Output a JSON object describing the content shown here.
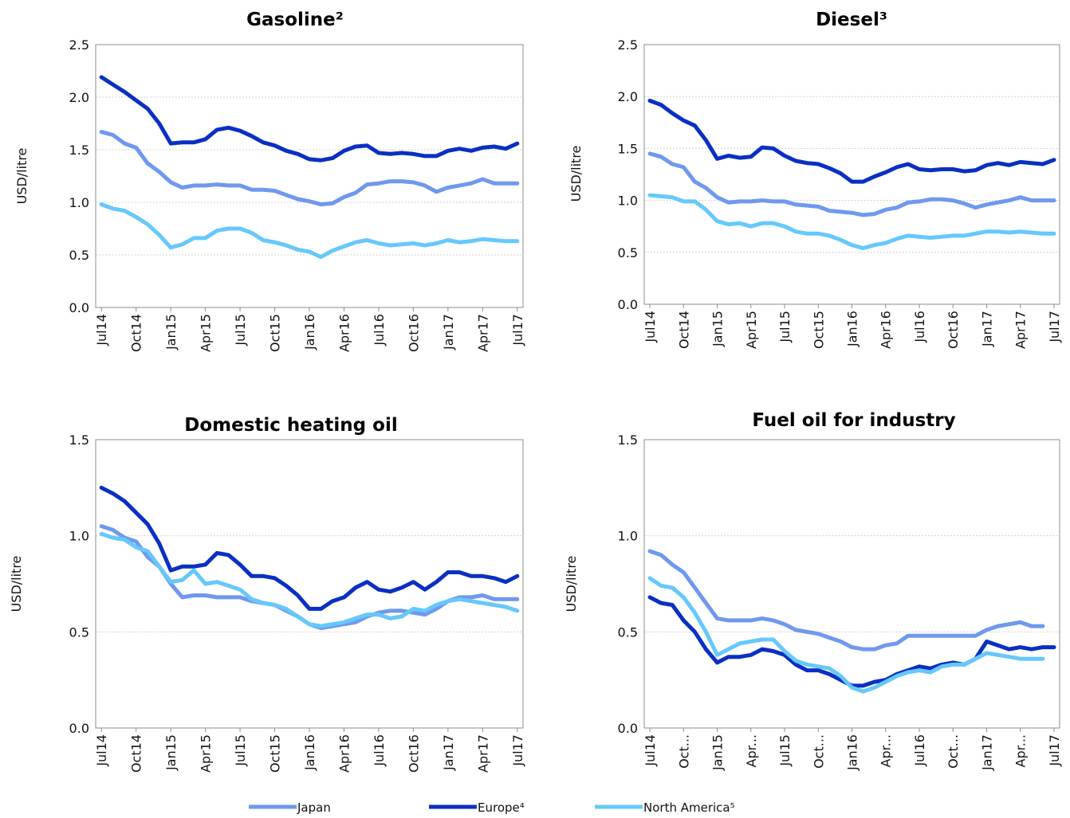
{
  "legend": [
    {
      "name": "Japan",
      "color": "#6f98ee"
    },
    {
      "name": "Europe⁴",
      "color": "#0a2fc2"
    },
    {
      "name": "North America⁵",
      "color": "#66c8fb"
    }
  ],
  "chart_data": [
    {
      "type": "line",
      "title": "Gasoline²",
      "ylabel": "USD/litre",
      "ylim": [
        0,
        2.5
      ],
      "yticks": [
        "0.0",
        "0.5",
        "1.0",
        "1.5",
        "2.0",
        "2.5"
      ],
      "xtick_labels": [
        "Jul14",
        "Oct14",
        "Jan15",
        "Apr15",
        "Jul15",
        "Oct15",
        "Jan16",
        "Apr16",
        "Jul16",
        "Oct16",
        "Jan17",
        "Apr17",
        "Jul17"
      ],
      "x": [
        "Jul14",
        "Aug14",
        "Sep14",
        "Oct14",
        "Nov14",
        "Dec14",
        "Jan15",
        "Feb15",
        "Mar15",
        "Apr15",
        "May15",
        "Jun15",
        "Jul15",
        "Aug15",
        "Sep15",
        "Oct15",
        "Nov15",
        "Dec15",
        "Jan16",
        "Feb16",
        "Mar16",
        "Apr16",
        "May16",
        "Jun16",
        "Jul16",
        "Aug16",
        "Sep16",
        "Oct16",
        "Nov16",
        "Dec16",
        "Jan17",
        "Feb17",
        "Mar17",
        "Apr17",
        "May17",
        "Jun17",
        "Jul17"
      ],
      "series": [
        {
          "name": "Japan",
          "values": [
            1.67,
            1.64,
            1.56,
            1.52,
            1.37,
            1.29,
            1.19,
            1.14,
            1.16,
            1.16,
            1.17,
            1.16,
            1.16,
            1.12,
            1.12,
            1.11,
            1.07,
            1.03,
            1.01,
            0.98,
            0.99,
            1.05,
            1.09,
            1.17,
            1.18,
            1.2,
            1.2,
            1.19,
            1.16,
            1.1,
            1.14,
            1.16,
            1.18,
            1.22,
            1.18,
            1.18,
            1.18
          ]
        },
        {
          "name": "Europe⁴",
          "values": [
            2.19,
            2.12,
            2.05,
            1.97,
            1.89,
            1.75,
            1.56,
            1.57,
            1.57,
            1.6,
            1.69,
            1.71,
            1.68,
            1.63,
            1.57,
            1.54,
            1.49,
            1.46,
            1.41,
            1.4,
            1.42,
            1.49,
            1.53,
            1.54,
            1.47,
            1.46,
            1.47,
            1.46,
            1.44,
            1.44,
            1.49,
            1.51,
            1.49,
            1.52,
            1.53,
            1.51,
            1.56
          ]
        },
        {
          "name": "North America⁵",
          "values": [
            0.98,
            0.94,
            0.92,
            0.86,
            0.79,
            0.69,
            0.57,
            0.6,
            0.66,
            0.66,
            0.73,
            0.75,
            0.75,
            0.71,
            0.64,
            0.62,
            0.59,
            0.55,
            0.53,
            0.48,
            0.54,
            0.58,
            0.62,
            0.64,
            0.61,
            0.59,
            0.6,
            0.61,
            0.59,
            0.61,
            0.64,
            0.62,
            0.63,
            0.65,
            0.64,
            0.63,
            0.63
          ]
        }
      ]
    },
    {
      "type": "line",
      "title": "Diesel³",
      "ylabel": "USD/litre",
      "ylim": [
        0,
        2.5
      ],
      "yticks": [
        "0.0",
        "0.5",
        "1.0",
        "1.5",
        "2.0",
        "2.5"
      ],
      "xtick_labels": [
        "Jul14",
        "Oct14",
        "Jan15",
        "Apr15",
        "Jul15",
        "Oct15",
        "Jan16",
        "Apr16",
        "Jul16",
        "Oct16",
        "Jan17",
        "Apr17",
        "Jul17"
      ],
      "x": [
        "Jul14",
        "Aug14",
        "Sep14",
        "Oct14",
        "Nov14",
        "Dec14",
        "Jan15",
        "Feb15",
        "Mar15",
        "Apr15",
        "May15",
        "Jun15",
        "Jul15",
        "Aug15",
        "Sep15",
        "Oct15",
        "Nov15",
        "Dec15",
        "Jan16",
        "Feb16",
        "Mar16",
        "Apr16",
        "May16",
        "Jun16",
        "Jul16",
        "Aug16",
        "Sep16",
        "Oct16",
        "Nov16",
        "Dec16",
        "Jan17",
        "Feb17",
        "Mar17",
        "Apr17",
        "May17",
        "Jun17",
        "Jul17"
      ],
      "series": [
        {
          "name": "Japan",
          "values": [
            1.45,
            1.42,
            1.35,
            1.32,
            1.18,
            1.12,
            1.03,
            0.98,
            0.99,
            0.99,
            1.0,
            0.99,
            0.99,
            0.96,
            0.95,
            0.94,
            0.9,
            0.89,
            0.88,
            0.86,
            0.87,
            0.91,
            0.93,
            0.98,
            0.99,
            1.01,
            1.01,
            1.0,
            0.97,
            0.93,
            0.96,
            0.98,
            1.0,
            1.03,
            1.0,
            1.0,
            1.0
          ]
        },
        {
          "name": "Europe⁴",
          "values": [
            1.96,
            1.92,
            1.84,
            1.77,
            1.72,
            1.58,
            1.4,
            1.43,
            1.41,
            1.42,
            1.51,
            1.5,
            1.43,
            1.38,
            1.36,
            1.35,
            1.31,
            1.26,
            1.18,
            1.18,
            1.23,
            1.27,
            1.32,
            1.35,
            1.3,
            1.29,
            1.3,
            1.3,
            1.28,
            1.29,
            1.34,
            1.36,
            1.34,
            1.37,
            1.36,
            1.35,
            1.39
          ]
        },
        {
          "name": "North America⁵",
          "values": [
            1.05,
            1.04,
            1.03,
            0.99,
            0.99,
            0.91,
            0.8,
            0.77,
            0.78,
            0.75,
            0.78,
            0.78,
            0.75,
            0.7,
            0.68,
            0.68,
            0.66,
            0.62,
            0.57,
            0.54,
            0.57,
            0.59,
            0.63,
            0.66,
            0.65,
            0.64,
            0.65,
            0.66,
            0.66,
            0.68,
            0.7,
            0.7,
            0.69,
            0.7,
            0.69,
            0.68,
            0.68
          ]
        }
      ]
    },
    {
      "type": "line",
      "title": "Domestic heating oil",
      "ylabel": "USD/litre",
      "ylim": [
        0,
        1.5
      ],
      "yticks": [
        "0.0",
        "0.5",
        "1.0",
        "1.5"
      ],
      "xtick_labels": [
        "Jul14",
        "Oct14",
        "Jan15",
        "Apr15",
        "Jul15",
        "Oct15",
        "Jan16",
        "Apr16",
        "Jul16",
        "Oct16",
        "Jan17",
        "Apr17",
        "Jul17"
      ],
      "x": [
        "Jul14",
        "Aug14",
        "Sep14",
        "Oct14",
        "Nov14",
        "Dec14",
        "Jan15",
        "Feb15",
        "Mar15",
        "Apr15",
        "May15",
        "Jun15",
        "Jul15",
        "Aug15",
        "Sep15",
        "Oct15",
        "Nov15",
        "Dec15",
        "Jan16",
        "Feb16",
        "Mar16",
        "Apr16",
        "May16",
        "Jun16",
        "Jul16",
        "Aug16",
        "Sep16",
        "Oct16",
        "Nov16",
        "Dec16",
        "Jan17",
        "Feb17",
        "Mar17",
        "Apr17",
        "May17",
        "Jun17",
        "Jul17"
      ],
      "series": [
        {
          "name": "Japan",
          "values": [
            1.05,
            1.03,
            0.99,
            0.97,
            0.89,
            0.84,
            0.75,
            0.68,
            0.69,
            0.69,
            0.68,
            0.68,
            0.68,
            0.66,
            0.65,
            0.64,
            0.61,
            0.58,
            0.54,
            0.52,
            0.53,
            0.54,
            0.55,
            0.58,
            0.6,
            0.61,
            0.61,
            0.6,
            0.59,
            0.62,
            0.66,
            0.68,
            0.68,
            0.69,
            0.67,
            0.67,
            0.67
          ]
        },
        {
          "name": "Europe⁴",
          "values": [
            1.25,
            1.22,
            1.18,
            1.12,
            1.06,
            0.96,
            0.82,
            0.84,
            0.84,
            0.85,
            0.91,
            0.9,
            0.85,
            0.79,
            0.79,
            0.78,
            0.74,
            0.69,
            0.62,
            0.62,
            0.66,
            0.68,
            0.73,
            0.76,
            0.72,
            0.71,
            0.73,
            0.76,
            0.72,
            0.76,
            0.81,
            0.81,
            0.79,
            0.79,
            0.78,
            0.76,
            0.79
          ]
        },
        {
          "name": "North America⁵",
          "values": [
            1.01,
            0.99,
            0.98,
            0.94,
            0.92,
            0.84,
            0.76,
            0.77,
            0.82,
            0.75,
            0.76,
            0.74,
            0.72,
            0.67,
            0.65,
            0.64,
            0.62,
            0.58,
            0.54,
            0.53,
            0.54,
            0.55,
            0.57,
            0.59,
            0.59,
            0.57,
            0.58,
            0.62,
            0.61,
            0.64,
            0.66,
            0.67,
            0.66,
            0.65,
            0.64,
            0.63,
            0.61
          ]
        }
      ]
    },
    {
      "type": "line",
      "title": "Fuel oil for industry",
      "ylabel": "USD/litre",
      "ylim": [
        0,
        1.5
      ],
      "yticks": [
        "0.0",
        "0.5",
        "1.0",
        "1.5"
      ],
      "xtick_labels": [
        "Jul14",
        "Oct...",
        "Jan15",
        "Apr...",
        "Jul15",
        "Oct...",
        "Jan16",
        "Apr...",
        "Jul16",
        "Oct...",
        "Jan17",
        "Apr...",
        "Jul17"
      ],
      "x": [
        "Jul14",
        "Aug14",
        "Sep14",
        "Oct14",
        "Nov14",
        "Dec14",
        "Jan15",
        "Feb15",
        "Mar15",
        "Apr15",
        "May15",
        "Jun15",
        "Jul15",
        "Aug15",
        "Sep15",
        "Oct15",
        "Nov15",
        "Dec15",
        "Jan16",
        "Feb16",
        "Mar16",
        "Apr16",
        "May16",
        "Jun16",
        "Jul16",
        "Aug16",
        "Sep16",
        "Oct16",
        "Nov16",
        "Dec16",
        "Jan17",
        "Feb17",
        "Mar17",
        "Apr17",
        "May17",
        "Jun17",
        "Jul17"
      ],
      "series": [
        {
          "name": "Japan",
          "values": [
            0.92,
            0.9,
            0.85,
            0.81,
            0.73,
            0.65,
            0.57,
            0.56,
            0.56,
            0.56,
            0.57,
            0.56,
            0.54,
            0.51,
            0.5,
            0.49,
            0.47,
            0.45,
            0.42,
            0.41,
            0.41,
            0.43,
            0.44,
            0.48,
            0.48,
            0.48,
            0.48,
            0.48,
            0.48,
            0.48,
            0.51,
            0.53,
            0.54,
            0.55,
            0.53,
            0.53,
            null
          ]
        },
        {
          "name": "Europe⁴",
          "values": [
            0.68,
            0.65,
            0.64,
            0.56,
            0.5,
            0.41,
            0.34,
            0.37,
            0.37,
            0.38,
            0.41,
            0.4,
            0.38,
            0.33,
            0.3,
            0.3,
            0.28,
            0.25,
            0.22,
            0.22,
            0.24,
            0.25,
            0.28,
            0.3,
            0.32,
            0.31,
            0.33,
            0.34,
            0.33,
            0.36,
            0.45,
            0.43,
            0.41,
            0.42,
            0.41,
            0.42,
            0.42
          ]
        },
        {
          "name": "North America⁵",
          "values": [
            0.78,
            0.74,
            0.73,
            0.68,
            0.6,
            0.5,
            0.38,
            0.41,
            0.44,
            0.45,
            0.46,
            0.46,
            0.4,
            0.35,
            0.33,
            0.32,
            0.31,
            0.27,
            0.21,
            0.19,
            0.21,
            0.24,
            0.27,
            0.29,
            0.3,
            0.29,
            0.32,
            0.33,
            0.33,
            0.36,
            0.39,
            0.38,
            0.37,
            0.36,
            0.36,
            0.36,
            null
          ]
        }
      ]
    }
  ]
}
